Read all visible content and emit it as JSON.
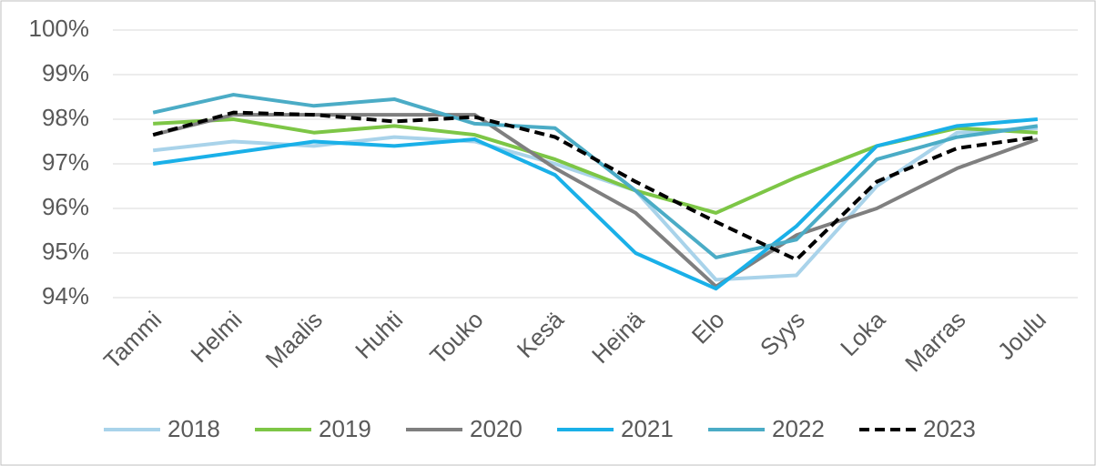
{
  "chart_data": {
    "type": "line",
    "categories": [
      "Tammi",
      "Helmi",
      "Maalis",
      "Huhti",
      "Touko",
      "Kesä",
      "Heinä",
      "Elo",
      "Syys",
      "Loka",
      "Marras",
      "Joulu"
    ],
    "series": [
      {
        "name": "2018",
        "color": "#a9d3ea",
        "values": [
          97.3,
          97.5,
          97.4,
          97.6,
          97.5,
          97.0,
          96.4,
          94.4,
          94.5,
          96.5,
          97.7,
          97.8
        ]
      },
      {
        "name": "2019",
        "color": "#7dc646",
        "values": [
          97.9,
          98.0,
          97.7,
          97.85,
          97.65,
          97.1,
          96.4,
          95.9,
          96.7,
          97.4,
          97.8,
          97.7
        ]
      },
      {
        "name": "2020",
        "color": "#7f7f7f",
        "values": [
          97.65,
          98.1,
          98.1,
          98.1,
          98.1,
          96.9,
          95.9,
          94.25,
          95.4,
          96.0,
          96.9,
          97.55
        ]
      },
      {
        "name": "2021",
        "color": "#1ab0e8",
        "values": [
          97.0,
          97.25,
          97.5,
          97.4,
          97.55,
          96.75,
          95.0,
          94.2,
          95.6,
          97.4,
          97.85,
          98.0
        ]
      },
      {
        "name": "2022",
        "color": "#4bacc6",
        "values": [
          98.15,
          98.55,
          98.3,
          98.45,
          97.9,
          97.8,
          96.4,
          94.9,
          95.3,
          97.1,
          97.6,
          97.85
        ]
      },
      {
        "name": "2023",
        "color": "#000000",
        "line_style": "dashed",
        "values": [
          97.65,
          98.15,
          98.1,
          97.95,
          98.05,
          97.6,
          96.6,
          95.7,
          94.85,
          96.6,
          97.35,
          97.6
        ]
      }
    ],
    "ylim": [
      94,
      100
    ],
    "yticks": [
      {
        "value": 94,
        "label": "94%"
      },
      {
        "value": 95,
        "label": "95%"
      },
      {
        "value": 96,
        "label": "96%"
      },
      {
        "value": 97,
        "label": "97%"
      },
      {
        "value": 98,
        "label": "98%"
      },
      {
        "value": 99,
        "label": "99%"
      },
      {
        "value": 100,
        "label": "100%"
      }
    ],
    "grid": true,
    "legend": "bottom"
  }
}
